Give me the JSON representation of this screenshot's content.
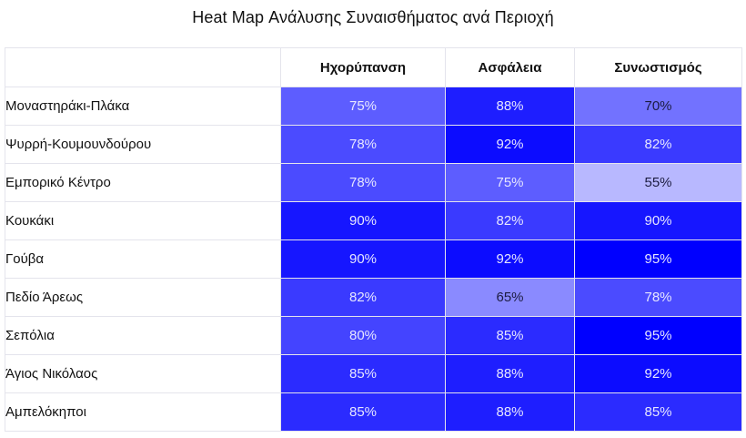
{
  "title": "Heat Map Ανάλυσης Συναισθήματος ανά Περιοχή",
  "table": {
    "corner": "",
    "columns": [
      "Ηχορύπανση",
      "Ασφάλεια",
      "Συνωστισμός"
    ],
    "rows": [
      {
        "region": "Μοναστηράκι-Πλάκα",
        "cells": [
          {
            "text": "75%",
            "bg": "#5d5dff",
            "fg": "#e6e6ff"
          },
          {
            "text": "88%",
            "bg": "#1e1eff",
            "fg": "#e6e6ff"
          },
          {
            "text": "70%",
            "bg": "#7272ff",
            "fg": "#1c1c40"
          }
        ]
      },
      {
        "region": "Ψυρρή-Κουμουνδούρου",
        "cells": [
          {
            "text": "78%",
            "bg": "#4b4bff",
            "fg": "#e6e6ff"
          },
          {
            "text": "92%",
            "bg": "#0c0cff",
            "fg": "#e6e6ff"
          },
          {
            "text": "82%",
            "bg": "#3a3aff",
            "fg": "#e6e6ff"
          }
        ]
      },
      {
        "region": "Εμπορικό Κέντρο",
        "cells": [
          {
            "text": "78%",
            "bg": "#4b4bff",
            "fg": "#e6e6ff"
          },
          {
            "text": "75%",
            "bg": "#5d5dff",
            "fg": "#e6e6ff"
          },
          {
            "text": "55%",
            "bg": "#b8b8ff",
            "fg": "#1c1c40"
          }
        ]
      },
      {
        "region": "Κουκάκι",
        "cells": [
          {
            "text": "90%",
            "bg": "#1616ff",
            "fg": "#e6e6ff"
          },
          {
            "text": "82%",
            "bg": "#3a3aff",
            "fg": "#e6e6ff"
          },
          {
            "text": "90%",
            "bg": "#1616ff",
            "fg": "#e6e6ff"
          }
        ]
      },
      {
        "region": "Γούβα",
        "cells": [
          {
            "text": "90%",
            "bg": "#1616ff",
            "fg": "#e6e6ff"
          },
          {
            "text": "92%",
            "bg": "#0c0cff",
            "fg": "#e6e6ff"
          },
          {
            "text": "95%",
            "bg": "#0000ff",
            "fg": "#e6e6ff"
          }
        ]
      },
      {
        "region": "Πεδίο Άρεως",
        "cells": [
          {
            "text": "82%",
            "bg": "#3a3aff",
            "fg": "#e6e6ff"
          },
          {
            "text": "65%",
            "bg": "#8a8aff",
            "fg": "#1c1c40"
          },
          {
            "text": "78%",
            "bg": "#4b4bff",
            "fg": "#e6e6ff"
          }
        ]
      },
      {
        "region": "Σεπόλια",
        "cells": [
          {
            "text": "80%",
            "bg": "#4444ff",
            "fg": "#e6e6ff"
          },
          {
            "text": "85%",
            "bg": "#2b2bff",
            "fg": "#e6e6ff"
          },
          {
            "text": "95%",
            "bg": "#0000ff",
            "fg": "#e6e6ff"
          }
        ]
      },
      {
        "region": "Άγιος Νικόλαος",
        "cells": [
          {
            "text": "85%",
            "bg": "#2b2bff",
            "fg": "#e6e6ff"
          },
          {
            "text": "88%",
            "bg": "#1e1eff",
            "fg": "#e6e6ff"
          },
          {
            "text": "92%",
            "bg": "#0c0cff",
            "fg": "#e6e6ff"
          }
        ]
      },
      {
        "region": "Αμπελόκηποι",
        "cells": [
          {
            "text": "85%",
            "bg": "#2b2bff",
            "fg": "#e6e6ff"
          },
          {
            "text": "88%",
            "bg": "#1e1eff",
            "fg": "#e6e6ff"
          },
          {
            "text": "85%",
            "bg": "#2b2bff",
            "fg": "#e6e6ff"
          }
        ]
      }
    ]
  },
  "chart_data": {
    "type": "heatmap",
    "title": "Heat Map Ανάλυσης Συναισθήματος ανά Περιοχή",
    "xlabel": "",
    "ylabel": "",
    "x": [
      "Ηχορύπανση",
      "Ασφάλεια",
      "Συνωστισμός"
    ],
    "y": [
      "Μοναστηράκι-Πλάκα",
      "Ψυρρή-Κουμουνδούρου",
      "Εμπορικό Κέντρο",
      "Κουκάκι",
      "Γούβα",
      "Πεδίο Άρεως",
      "Σεπόλια",
      "Άγιος Νικόλαος",
      "Αμπελόκηποι"
    ],
    "values": [
      [
        75,
        88,
        70
      ],
      [
        78,
        92,
        82
      ],
      [
        78,
        75,
        55
      ],
      [
        90,
        82,
        90
      ],
      [
        90,
        92,
        95
      ],
      [
        82,
        65,
        78
      ],
      [
        80,
        85,
        95
      ],
      [
        85,
        88,
        92
      ],
      [
        85,
        88,
        85
      ]
    ],
    "unit": "%",
    "colorscale": {
      "low": "#ffffff",
      "high": "#0000ff"
    },
    "legend": "none",
    "grid": true
  }
}
